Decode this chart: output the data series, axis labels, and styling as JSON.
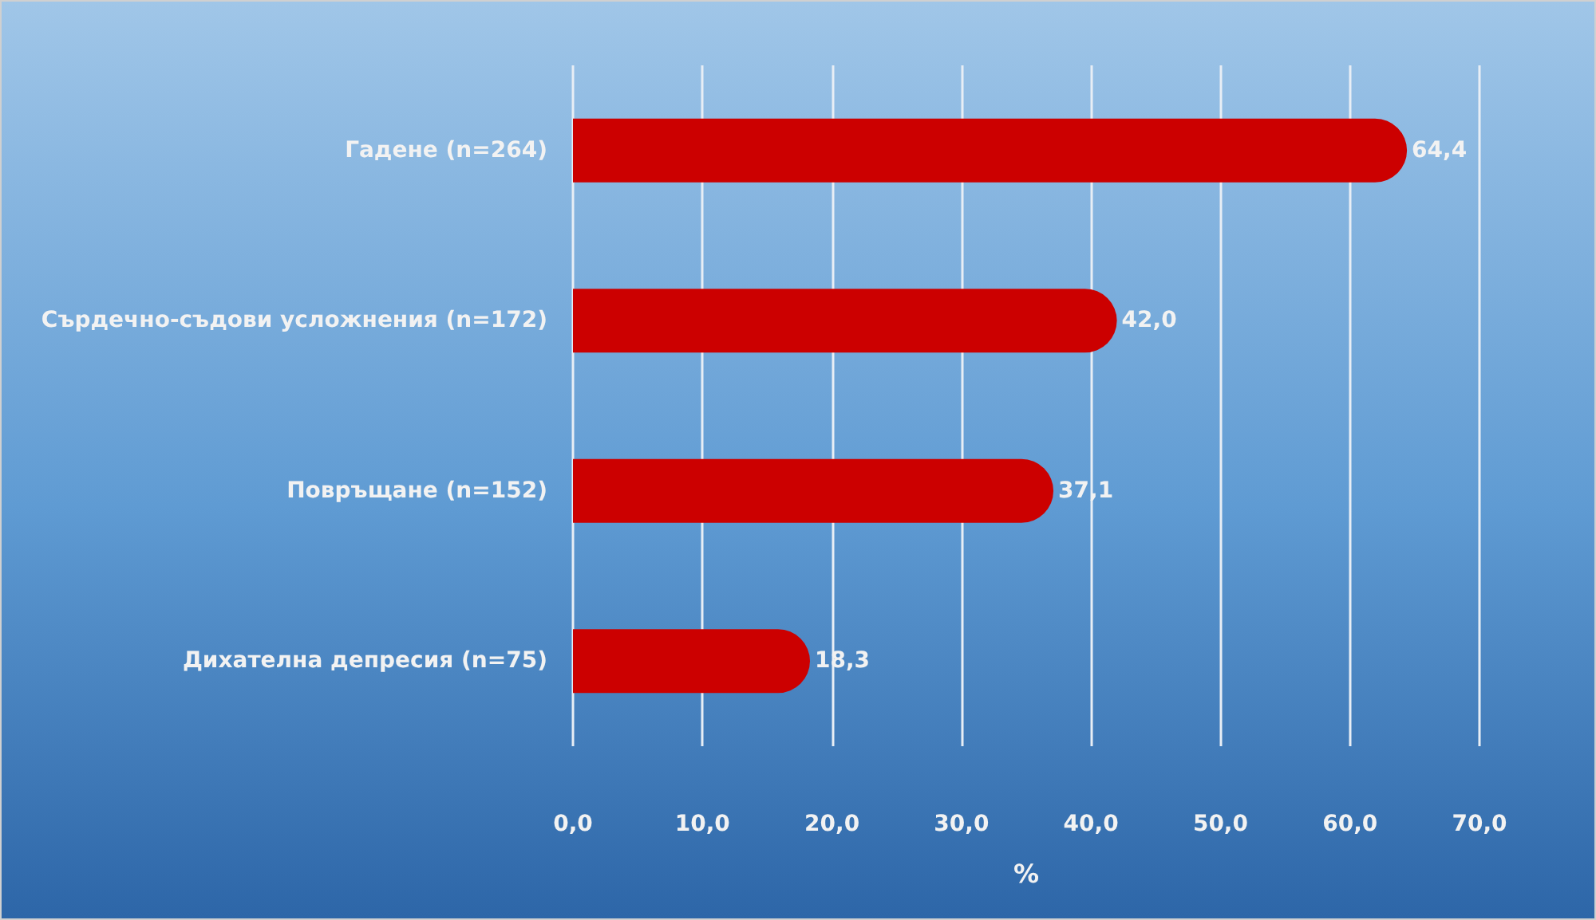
{
  "chart_data": {
    "type": "bar",
    "orientation": "horizontal",
    "categories": [
      "Гадене (n=264)",
      "Сърдечно-съдови усложнения (n=172)",
      "Повръщане (n=152)",
      "Дихателна депресия (n=75)"
    ],
    "values": [
      64.4,
      42.0,
      37.1,
      18.3
    ],
    "color": "#cc0000",
    "value_labels": [
      "64,4",
      "42,0",
      "37,1",
      "18,3"
    ],
    "xlabel": "%",
    "xlim": [
      0,
      70
    ],
    "xticks": [
      {
        "value": 0,
        "label": "0,0"
      },
      {
        "value": 10,
        "label": "10,0"
      },
      {
        "value": 20,
        "label": "20,0"
      },
      {
        "value": 30,
        "label": "30,0"
      },
      {
        "value": 40,
        "label": "40,0"
      },
      {
        "value": 50,
        "label": "50,0"
      },
      {
        "value": 60,
        "label": "60,0"
      },
      {
        "value": 70,
        "label": "70,0"
      }
    ],
    "grid": "x"
  }
}
